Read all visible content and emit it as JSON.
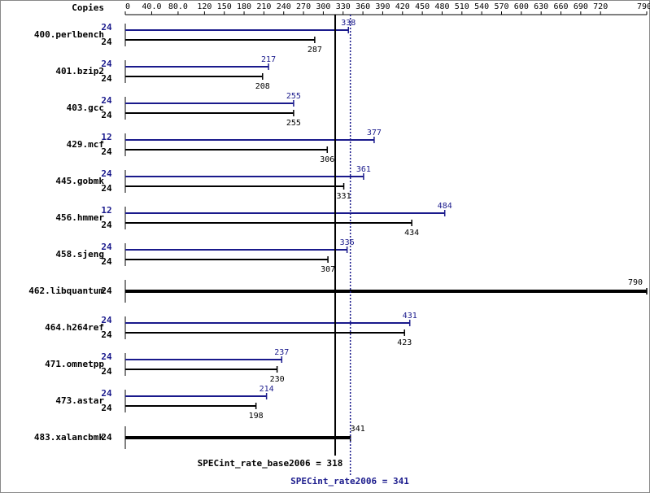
{
  "chart_data": {
    "type": "bar",
    "copies_label": "Copies",
    "categories": [
      "400.perlbench",
      "401.bzip2",
      "403.gcc",
      "429.mcf",
      "445.gobmk",
      "456.hmmer",
      "458.sjeng",
      "462.libquantum",
      "464.h264ref",
      "471.omnetpp",
      "473.astar",
      "483.xalancbmk"
    ],
    "series": [
      {
        "color": "#1a1a8c",
        "copies": [
          24,
          24,
          24,
          12,
          24,
          12,
          24,
          null,
          24,
          24,
          24,
          null
        ],
        "values": [
          338,
          217,
          255,
          377,
          361,
          484,
          336,
          null,
          431,
          237,
          214,
          null
        ]
      },
      {
        "color": "#000000",
        "copies": [
          24,
          24,
          24,
          24,
          24,
          24,
          24,
          24,
          24,
          24,
          24,
          24
        ],
        "values": [
          287,
          208,
          255,
          306,
          331,
          434,
          307,
          790,
          423,
          230,
          198,
          341
        ]
      }
    ],
    "xlim": [
      0,
      790
    ],
    "xticks": [
      0,
      {
        "value": 40,
        "label": "40.0"
      },
      {
        "value": 80,
        "label": "80.0"
      },
      120,
      150,
      180,
      210,
      240,
      270,
      300,
      330,
      360,
      390,
      420,
      450,
      480,
      510,
      540,
      570,
      600,
      630,
      660,
      690,
      720,
      790
    ],
    "reference_lines": [
      {
        "label": "SPECint_rate_base2006 = 318",
        "value": 318,
        "color": "#000000"
      },
      {
        "label": "SPECint_rate2006 = 341",
        "value": 341,
        "color": "#1a1a8c"
      }
    ]
  }
}
